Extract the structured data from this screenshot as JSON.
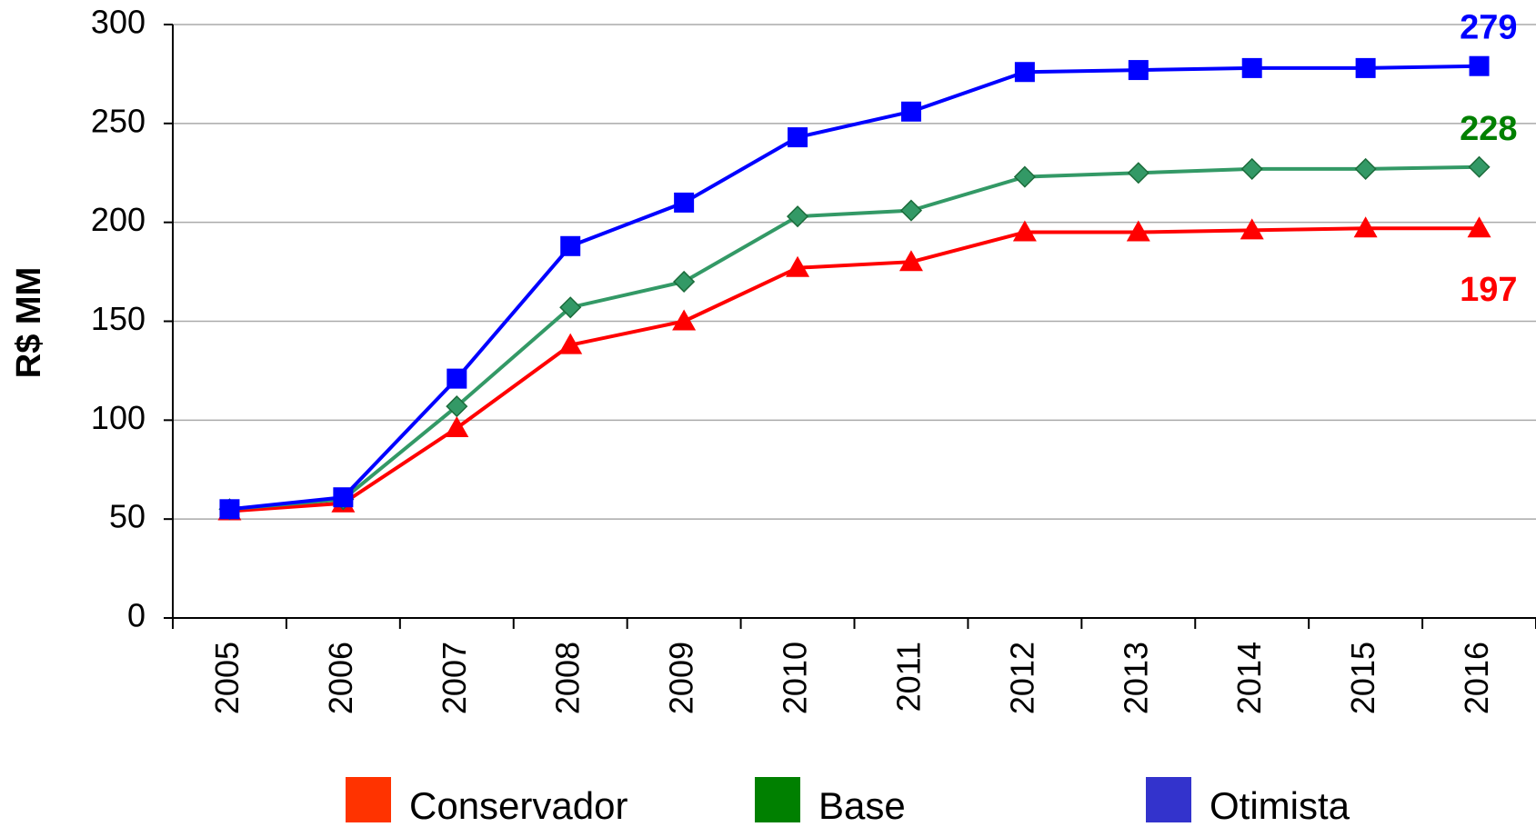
{
  "chart_data": {
    "type": "line",
    "ylabel": "R$ MM",
    "categories": [
      "2005",
      "2006",
      "2007",
      "2008",
      "2009",
      "2010",
      "2011",
      "2012",
      "2013",
      "2014",
      "2015",
      "2016"
    ],
    "series": [
      {
        "name": "Conservador",
        "color": "#ff0000",
        "legend_color": "#ff3300",
        "label_color": "#ff0000",
        "marker": "triangle",
        "values": [
          54,
          58,
          96,
          138,
          150,
          177,
          180,
          195,
          195,
          196,
          197,
          197
        ]
      },
      {
        "name": "Base",
        "color": "#339966",
        "legend_color": "#008000",
        "label_color": "#008000",
        "marker": "diamond",
        "values": [
          55,
          60,
          107,
          157,
          170,
          203,
          206,
          223,
          225,
          227,
          227,
          228
        ]
      },
      {
        "name": "Otimista",
        "color": "#0000ff",
        "legend_color": "#3333cc",
        "label_color": "#0000ff",
        "marker": "square",
        "values": [
          55,
          61,
          121,
          188,
          210,
          243,
          256,
          276,
          277,
          278,
          278,
          279
        ]
      }
    ],
    "ylim": [
      0,
      300
    ],
    "yticks": [
      0,
      50,
      100,
      150,
      200,
      250,
      300
    ],
    "grid": true
  }
}
